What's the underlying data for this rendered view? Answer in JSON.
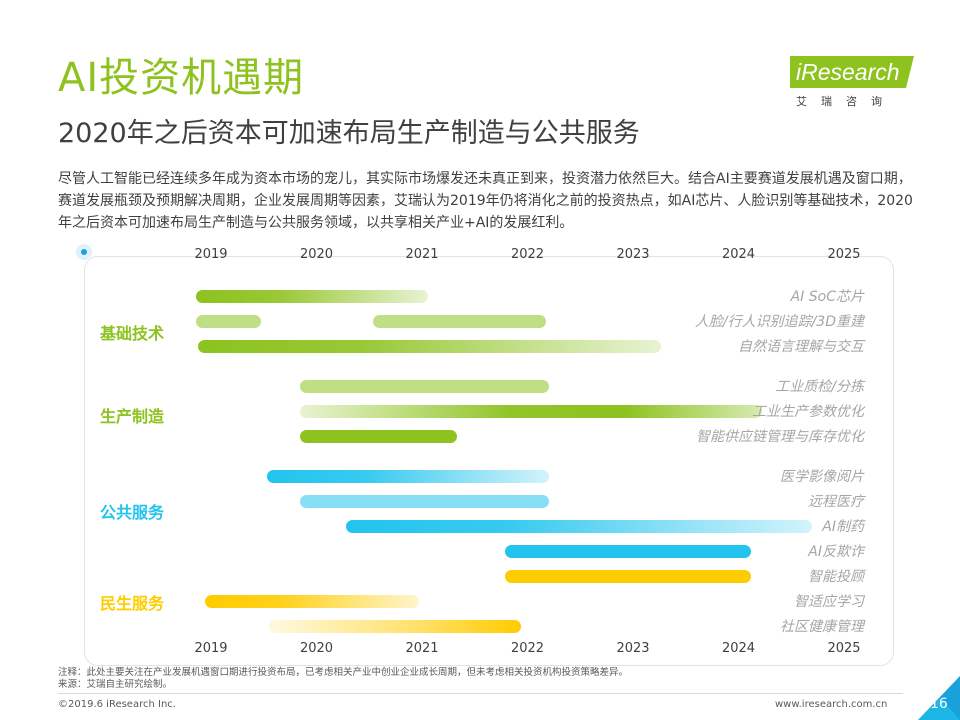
{
  "header": {
    "title": "AI投资机遇期",
    "subtitle": "2020年之后资本可加速布局生产制造与公共服务"
  },
  "brand": {
    "logo_text": "iResearch",
    "logo_subtitle": "艾瑞咨询",
    "color": "#8dc21f"
  },
  "intro": "尽管人工智能已经连续多年成为资本市场的宠儿，其实际市场爆发还未真正到来，投资潜力依然巨大。结合AI主要赛道发展机遇及窗口期，赛道发展瓶颈及预期解决周期，企业发展周期等因素，艾瑞认为2019年仍将消化之前的投资热点，如AI芯片、人脸识别等基础技术，2020年之后资本可加速布局生产制造与公共服务领域，以共享相关产业+AI的发展红利。",
  "chart_data": {
    "type": "bar",
    "x_ticks": [
      "2019",
      "2020",
      "2021",
      "2022",
      "2023",
      "2024",
      "2025"
    ],
    "xlim": [
      2019,
      2025
    ],
    "groups": [
      {
        "name": "基础技术",
        "color": "#8dc21f",
        "bars": [
          {
            "label": "AI SoC芯片",
            "start": 2018.86,
            "end": 2021.06,
            "fade": "end"
          },
          {
            "label": "人脸/行人识别追踪/3D重建",
            "segments": [
              [
                2018.86,
                2019.47
              ],
              [
                2020.54,
                2022.18
              ]
            ],
            "fade": "none",
            "light": true
          },
          {
            "label": "自然语言理解与交互",
            "start": 2018.88,
            "end": 2023.27,
            "fade": "end"
          }
        ]
      },
      {
        "name": "生产制造",
        "color": "#8dc21f",
        "bars": [
          {
            "label": "工业质检/分拣",
            "start": 2019.84,
            "end": 2022.2,
            "fade": "none",
            "light": true
          },
          {
            "label": "工业生产参数优化",
            "start": 2019.84,
            "end": 2024.22,
            "fade": "both"
          },
          {
            "label": "智能供应链管理与库存优化",
            "start": 2019.84,
            "end": 2021.33,
            "fade": "none"
          }
        ]
      },
      {
        "name": "公共服务",
        "color": "#22c4ee",
        "bars": [
          {
            "label": "医学影像阅片",
            "start": 2019.53,
            "end": 2022.2,
            "fade": "end"
          },
          {
            "label": "远程医疗",
            "start": 2019.84,
            "end": 2022.2,
            "fade": "none",
            "light": true
          },
          {
            "label": "AI制药",
            "start": 2020.28,
            "end": 2024.7,
            "fade": "end"
          },
          {
            "label": "AI反欺诈",
            "start": 2021.79,
            "end": 2024.12,
            "fade": "none"
          }
        ]
      },
      {
        "name": "民生服务",
        "color": "#ffcc00",
        "bars": [
          {
            "label": "智能投顾",
            "start": 2021.79,
            "end": 2024.12,
            "fade": "none"
          },
          {
            "label": "智适应学习",
            "start": 2018.94,
            "end": 2020.97,
            "fade": "end"
          },
          {
            "label": "社区健康管理",
            "start": 2019.55,
            "end": 2021.94,
            "fade": "start"
          }
        ]
      }
    ]
  },
  "footer": {
    "note": "注释：此处主要关注在产业发展机遇窗口期进行投资布局，已考虑相关产业中创业企业成长周期，但未考虑相关投资机构投资策略差异。",
    "source": "来源：艾瑞自主研究绘制。",
    "copyright": "©2019.6 iResearch Inc.",
    "website": "www.iresearch.com.cn",
    "page_number": "16"
  },
  "accent_colors": {
    "blue": "#1aa0db",
    "green_corner": "#8dc21f"
  }
}
